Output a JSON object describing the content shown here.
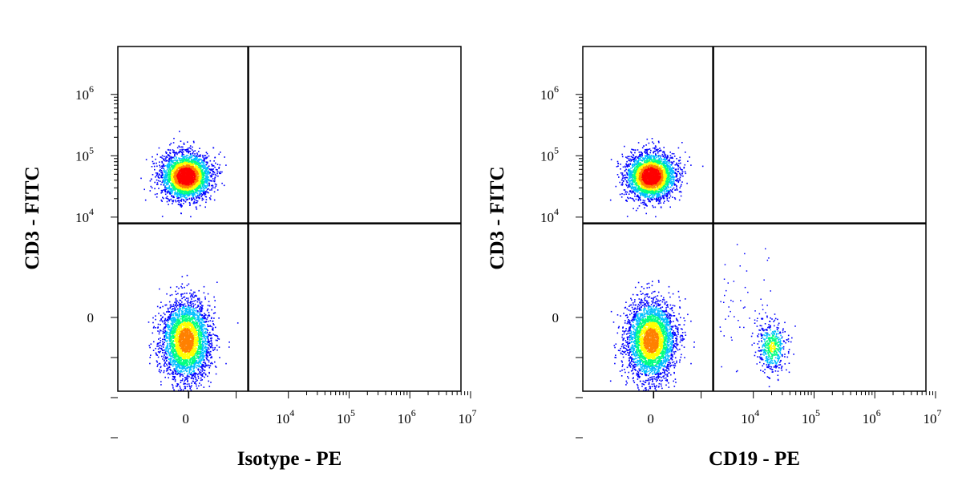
{
  "chart_data": [
    {
      "type": "scatter",
      "subtype": "flow-cytometry-density-dot-plot",
      "xlabel": "Isotype - PE",
      "ylabel": "CD3 - FITC",
      "x_scale": "biexponential",
      "y_scale": "biexponential",
      "x_tick_labels": [
        {
          "value": 0,
          "label": "0"
        },
        {
          "value": 10000,
          "label": "10^4"
        },
        {
          "value": 100000,
          "label": "10^5"
        },
        {
          "value": 1000000,
          "label": "10^6"
        },
        {
          "value": 10000000,
          "label": "10^7"
        }
      ],
      "y_tick_labels": [
        {
          "value": 0,
          "label": "0"
        },
        {
          "value": 10000,
          "label": "10^4"
        },
        {
          "value": 100000,
          "label": "10^5"
        },
        {
          "value": 1000000,
          "label": "10^6"
        }
      ],
      "gate": {
        "x": 1800,
        "y": 7000
      },
      "populations": [
        {
          "x_center": 0,
          "y_center": 50000,
          "density": "high"
        },
        {
          "x_center": 0,
          "y_center": -300,
          "density": "high"
        }
      ],
      "colorscale": [
        "#0000ff",
        "#00bfff",
        "#00ff80",
        "#ffff00",
        "#ff8000",
        "#ff0000"
      ],
      "grid": false,
      "legend": "none"
    },
    {
      "type": "scatter",
      "subtype": "flow-cytometry-density-dot-plot",
      "xlabel": "CD19 - PE",
      "ylabel": "CD3 - FITC",
      "x_scale": "biexponential",
      "y_scale": "biexponential",
      "x_tick_labels": [
        {
          "value": 0,
          "label": "0"
        },
        {
          "value": 10000,
          "label": "10^4"
        },
        {
          "value": 100000,
          "label": "10^5"
        },
        {
          "value": 1000000,
          "label": "10^6"
        },
        {
          "value": 10000000,
          "label": "10^7"
        }
      ],
      "y_tick_labels": [
        {
          "value": 0,
          "label": "0"
        },
        {
          "value": 10000,
          "label": "10^4"
        },
        {
          "value": 100000,
          "label": "10^5"
        },
        {
          "value": 1000000,
          "label": "10^6"
        }
      ],
      "gate": {
        "x": 1800,
        "y": 7000
      },
      "populations": [
        {
          "x_center": 0,
          "y_center": 50000,
          "density": "high"
        },
        {
          "x_center": 0,
          "y_center": -300,
          "density": "high"
        },
        {
          "x_center": 20000,
          "y_center": -300,
          "density": "medium"
        }
      ],
      "colorscale": [
        "#0000ff",
        "#00bfff",
        "#00ff80",
        "#ffff00",
        "#ff8000",
        "#ff0000"
      ],
      "grid": false,
      "legend": "none"
    }
  ]
}
